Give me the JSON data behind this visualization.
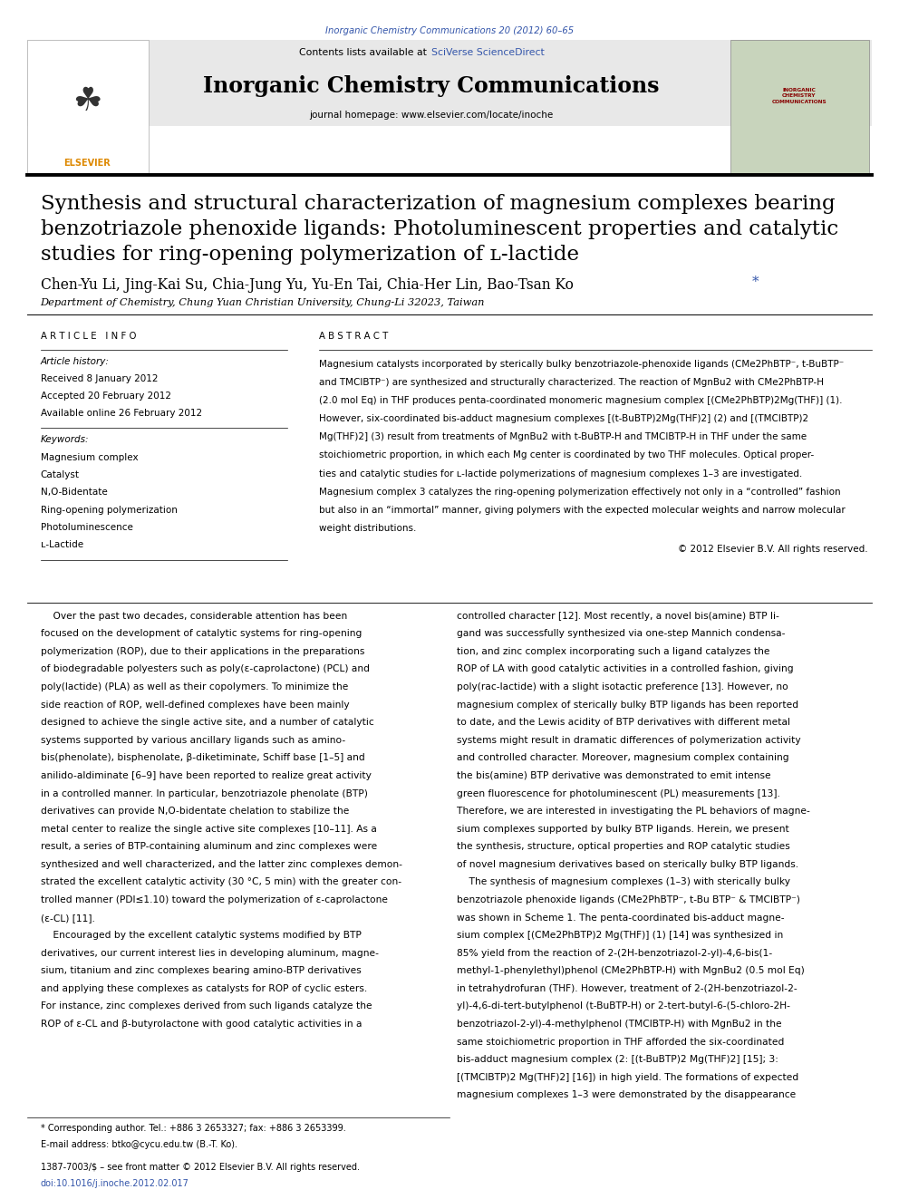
{
  "page_width": 9.92,
  "page_height": 13.23,
  "background_color": "#ffffff",
  "journal_ref": "Inorganic Chemistry Communications 20 (2012) 60–65",
  "journal_ref_color": "#3355aa",
  "header_bg_color": "#e8e8e8",
  "journal_title": "Inorganic Chemistry Communications",
  "journal_homepage": "journal homepage: www.elsevier.com/locate/inoche",
  "paper_title_line1": "Synthesis and structural characterization of magnesium complexes bearing",
  "paper_title_line2": "benzotriazole phenoxide ligands: Photoluminescent properties and catalytic",
  "paper_title_line3": "studies for ring-opening polymerization of ʟ-lactide",
  "paper_title_fontsize": 16.5,
  "authors_main": "Chen-Yu Li, Jing-Kai Su, Chia-Jung Yu, Yu-En Tai, Chia-Her Lin, Bao-Tsan Ko ",
  "authors_star": "*",
  "star_color": "#3355aa",
  "affiliation": "Department of Chemistry, Chung Yuan Christian University, Chung-Li 32023, Taiwan",
  "article_info_label": "A R T I C L E   I N F O",
  "abstract_label": "A B S T R A C T",
  "article_history_title": "Article history:",
  "article_history_lines": [
    "Received 8 January 2012",
    "Accepted 20 February 2012",
    "Available online 26 February 2012"
  ],
  "keywords_title": "Keywords:",
  "keywords_lines": [
    "Magnesium complex",
    "Catalyst",
    "N,O-Bidentate",
    "Ring-opening polymerization",
    "Photoluminescence",
    "ʟ-Lactide"
  ],
  "abstract_lines": [
    "Magnesium catalysts incorporated by sterically bulky benzotriazole-phenoxide ligands (CMe2PhBTP⁻, t-BuBTP⁻",
    "and TMClBTP⁻) are synthesized and structurally characterized. The reaction of MgnBu2 with CMe2PhBTP-H",
    "(2.0 mol Eq) in THF produces penta-coordinated monomeric magnesium complex [(CMe2PhBTP)2Mg(THF)] (1).",
    "However, six-coordinated bis-adduct magnesium complexes [(t-BuBTP)2Mg(THF)2] (2) and [(TMClBTP)2",
    "Mg(THF)2] (3) result from treatments of MgnBu2 with t-BuBTP-H and TMClBTP-H in THF under the same",
    "stoichiometric proportion, in which each Mg center is coordinated by two THF molecules. Optical proper-",
    "ties and catalytic studies for ʟ-lactide polymerizations of magnesium complexes 1–3 are investigated.",
    "Magnesium complex 3 catalyzes the ring-opening polymerization effectively not only in a “controlled” fashion",
    "but also in an “immortal” manner, giving polymers with the expected molecular weights and narrow molecular",
    "weight distributions."
  ],
  "copyright": "© 2012 Elsevier B.V. All rights reserved.",
  "body_left_lines": [
    "    Over the past two decades, considerable attention has been",
    "focused on the development of catalytic systems for ring-opening",
    "polymerization (ROP), due to their applications in the preparations",
    "of biodegradable polyesters such as poly(ε-caprolactone) (PCL) and",
    "poly(lactide) (PLA) as well as their copolymers. To minimize the",
    "side reaction of ROP, well-defined complexes have been mainly",
    "designed to achieve the single active site, and a number of catalytic",
    "systems supported by various ancillary ligands such as amino-",
    "bis(phenolate), bisphenolate, β-diketiminate, Schiff base [1–5] and",
    "anilido-aldiminate [6–9] have been reported to realize great activity",
    "in a controlled manner. In particular, benzotriazole phenolate (BTP)",
    "derivatives can provide N,O-bidentate chelation to stabilize the",
    "metal center to realize the single active site complexes [10–11]. As a",
    "result, a series of BTP-containing aluminum and zinc complexes were",
    "synthesized and well characterized, and the latter zinc complexes demon-",
    "strated the excellent catalytic activity (30 °C, 5 min) with the greater con-",
    "trolled manner (PDI≤1.10) toward the polymerization of ε-caprolactone",
    "(ε-CL) [11].",
    "    Encouraged by the excellent catalytic systems modified by BTP",
    "derivatives, our current interest lies in developing aluminum, magne-",
    "sium, titanium and zinc complexes bearing amino-BTP derivatives",
    "and applying these complexes as catalysts for ROP of cyclic esters.",
    "For instance, zinc complexes derived from such ligands catalyze the",
    "ROP of ε-CL and β-butyrolactone with good catalytic activities in a"
  ],
  "body_right_lines": [
    "controlled character [12]. Most recently, a novel bis(amine) BTP li-",
    "gand was successfully synthesized via one-step Mannich condensa-",
    "tion, and zinc complex incorporating such a ligand catalyzes the",
    "ROP of LA with good catalytic activities in a controlled fashion, giving",
    "poly(rac-lactide) with a slight isotactic preference [13]. However, no",
    "magnesium complex of sterically bulky BTP ligands has been reported",
    "to date, and the Lewis acidity of BTP derivatives with different metal",
    "systems might result in dramatic differences of polymerization activity",
    "and controlled character. Moreover, magnesium complex containing",
    "the bis(amine) BTP derivative was demonstrated to emit intense",
    "green fluorescence for photoluminescent (PL) measurements [13].",
    "Therefore, we are interested in investigating the PL behaviors of magne-",
    "sium complexes supported by bulky BTP ligands. Herein, we present",
    "the synthesis, structure, optical properties and ROP catalytic studies",
    "of novel magnesium derivatives based on sterically bulky BTP ligands.",
    "    The synthesis of magnesium complexes (1–3) with sterically bulky",
    "benzotriazole phenoxide ligands (CMe2PhBTP⁻, t-Bu BTP⁻ & TMClBTP⁻)",
    "was shown in Scheme 1. The penta-coordinated bis-adduct magne-",
    "sium complex [(CMe2PhBTP)2 Mg(THF)] (1) [14] was synthesized in",
    "85% yield from the reaction of 2-(2H-benzotriazol-2-yl)-4,6-bis(1-",
    "methyl-1-phenylethyl)phenol (CMe2PhBTP-H) with MgnBu2 (0.5 mol Eq)",
    "in tetrahydrofuran (THF). However, treatment of 2-(2H-benzotriazol-2-",
    "yl)-4,6-di-tert-butylphenol (t-BuBTP-H) or 2-tert-butyl-6-(5-chloro-2H-",
    "benzotriazol-2-yl)-4-methylphenol (TMClBTP-H) with MgnBu2 in the",
    "same stoichiometric proportion in THF afforded the six-coordinated",
    "bis-adduct magnesium complex (2: [(t-BuBTP)2 Mg(THF)2] [15]; 3:",
    "[(TMClBTP)2 Mg(THF)2] [16]) in high yield. The formations of expected",
    "magnesium complexes 1–3 were demonstrated by the disappearance"
  ],
  "footer_note": "* Corresponding author. Tel.: +886 3 2653327; fax: +886 3 2653399.",
  "footer_email": "E-mail address: btko@cycu.edu.tw (B.-T. Ko).",
  "footer_issn": "1387-7003/$ – see front matter © 2012 Elsevier B.V. All rights reserved.",
  "footer_doi": "doi:10.1016/j.inoche.2012.02.017",
  "link_color": "#3355aa"
}
